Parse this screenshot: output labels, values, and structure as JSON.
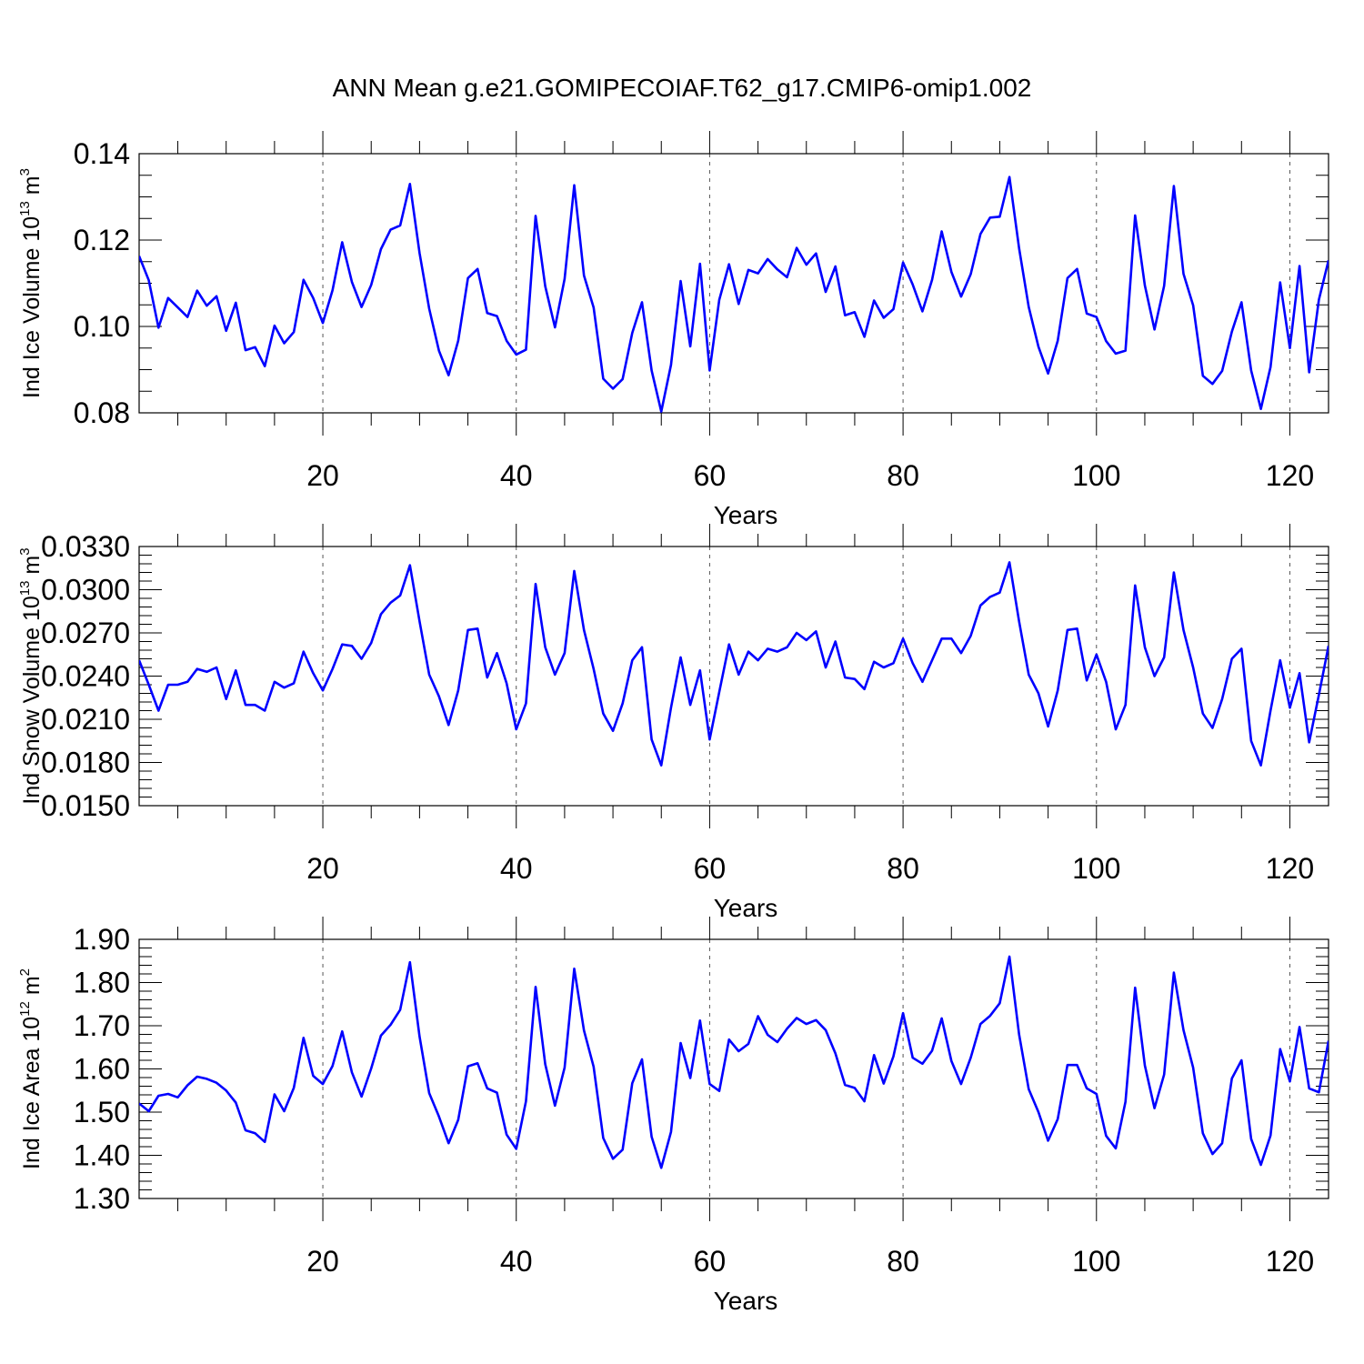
{
  "figure": {
    "title": "ANN Mean g.e21.GOMIPECOIAF.T62_g17.CMIP6-omip1.002"
  },
  "colors": {
    "line": "#0000ff",
    "axes": "#000000",
    "grid": "#555555",
    "background": "#ffffff"
  },
  "chart_data": [
    {
      "type": "line",
      "title": "ANN Mean g.e21.GOMIPECOIAF.T62_g17.CMIP6-omip1.002",
      "xlabel": "Years",
      "ylabel": "Ind Ice Volume 10",
      "ylabel_exponent": "13",
      "ylabel_unit": " m",
      "ylabel_unit_exponent": "3",
      "xlim": [
        1,
        124
      ],
      "ylim": [
        0.08,
        0.14
      ],
      "xticks": [
        20,
        40,
        60,
        80,
        100,
        120
      ],
      "xtick_labels": [
        "20",
        "40",
        "60",
        "80",
        "100",
        "120"
      ],
      "yticks": [
        0.08,
        0.1,
        0.12,
        0.14
      ],
      "ytick_labels": [
        "0.08",
        "0.10",
        "0.12",
        "0.14"
      ],
      "ytick_step_minor": 0.005,
      "grid": "vertical dashed at major x ticks",
      "series": [
        {
          "name": "Ind Ice Volume",
          "x_start": 1,
          "values": [
            0.1163,
            0.1107,
            0.0997,
            0.1066,
            0.1044,
            0.1022,
            0.1083,
            0.1048,
            0.107,
            0.099,
            0.1055,
            0.0945,
            0.0952,
            0.0908,
            0.1002,
            0.0961,
            0.0987,
            0.1108,
            0.1066,
            0.1008,
            0.1084,
            0.1195,
            0.1103,
            0.1045,
            0.1096,
            0.1179,
            0.1224,
            0.1234,
            0.133,
            0.117,
            0.1041,
            0.0944,
            0.0887,
            0.0967,
            0.1112,
            0.1133,
            0.1031,
            0.1024,
            0.0967,
            0.0935,
            0.0946,
            0.1256,
            0.1093,
            0.0998,
            0.111,
            0.1327,
            0.1118,
            0.1044,
            0.0879,
            0.0856,
            0.0878,
            0.0985,
            0.1056,
            0.0898,
            0.0803,
            0.0911,
            0.1105,
            0.0954,
            0.1145,
            0.0898,
            0.1062,
            0.1144,
            0.1052,
            0.1131,
            0.1123,
            0.1156,
            0.1132,
            0.1114,
            0.1182,
            0.1143,
            0.1169,
            0.108,
            0.1139,
            0.1026,
            0.1033,
            0.0976,
            0.106,
            0.102,
            0.104,
            0.1148,
            0.1097,
            0.1035,
            0.1108,
            0.122,
            0.1126,
            0.1069,
            0.1121,
            0.1214,
            0.1252,
            0.1254,
            0.1346,
            0.1181,
            0.1045,
            0.0953,
            0.0891,
            0.0967,
            0.1112,
            0.1133,
            0.103,
            0.1022,
            0.0966,
            0.0937,
            0.0944,
            0.1257,
            0.1095,
            0.0993,
            0.1094,
            0.1325,
            0.1122,
            0.1049,
            0.0886,
            0.0867,
            0.0897,
            0.0988,
            0.1056,
            0.0898,
            0.0809,
            0.0906,
            0.1102,
            0.095,
            0.114,
            0.0894,
            0.1062,
            0.1153
          ]
        }
      ]
    },
    {
      "type": "line",
      "xlabel": "Years",
      "ylabel": "Ind Snow Volume 10",
      "ylabel_exponent": "13",
      "ylabel_unit": " m",
      "ylabel_unit_exponent": "3",
      "xlim": [
        1,
        124
      ],
      "ylim": [
        0.015,
        0.033
      ],
      "xticks": [
        20,
        40,
        60,
        80,
        100,
        120
      ],
      "xtick_labels": [
        "20",
        "40",
        "60",
        "80",
        "100",
        "120"
      ],
      "yticks": [
        0.015,
        0.018,
        0.021,
        0.024,
        0.027,
        0.03,
        0.033
      ],
      "ytick_labels": [
        "0.0150",
        "0.0180",
        "0.0210",
        "0.0240",
        "0.0270",
        "0.0300",
        "0.0330"
      ],
      "ytick_step_minor": 0.0006,
      "grid": "vertical dashed at major x ticks",
      "series": [
        {
          "name": "Ind Snow Volume",
          "x_start": 1,
          "values": [
            0.0251,
            0.0234,
            0.0216,
            0.0234,
            0.0234,
            0.0236,
            0.0245,
            0.0243,
            0.0246,
            0.0224,
            0.0244,
            0.022,
            0.022,
            0.0216,
            0.0236,
            0.0232,
            0.0235,
            0.0257,
            0.0242,
            0.023,
            0.0245,
            0.0262,
            0.0261,
            0.0252,
            0.0263,
            0.0283,
            0.0291,
            0.0296,
            0.0317,
            0.0278,
            0.0241,
            0.0226,
            0.0206,
            0.023,
            0.0272,
            0.0273,
            0.0239,
            0.0256,
            0.0235,
            0.0203,
            0.0221,
            0.0304,
            0.026,
            0.0241,
            0.0256,
            0.0313,
            0.0272,
            0.0245,
            0.0214,
            0.0202,
            0.0221,
            0.0251,
            0.026,
            0.0196,
            0.0178,
            0.0218,
            0.0253,
            0.022,
            0.0244,
            0.0196,
            0.0229,
            0.0262,
            0.0241,
            0.0257,
            0.0251,
            0.0259,
            0.0257,
            0.026,
            0.027,
            0.0265,
            0.0271,
            0.0246,
            0.0264,
            0.0239,
            0.0238,
            0.0231,
            0.025,
            0.0246,
            0.0249,
            0.0266,
            0.0249,
            0.0236,
            0.0251,
            0.0266,
            0.0266,
            0.0256,
            0.0268,
            0.0289,
            0.0295,
            0.0298,
            0.0319,
            0.0278,
            0.0241,
            0.0228,
            0.0205,
            0.023,
            0.0272,
            0.0273,
            0.0237,
            0.0255,
            0.0236,
            0.0203,
            0.022,
            0.0303,
            0.026,
            0.024,
            0.0253,
            0.0312,
            0.0272,
            0.0246,
            0.0214,
            0.0204,
            0.0224,
            0.0252,
            0.0259,
            0.0195,
            0.0178,
            0.0216,
            0.0251,
            0.0218,
            0.0242,
            0.0194,
            0.0227,
            0.0261
          ]
        }
      ]
    },
    {
      "type": "line",
      "xlabel": "Years",
      "ylabel": "Ind Ice Area 10",
      "ylabel_exponent": "12",
      "ylabel_unit": " m",
      "ylabel_unit_exponent": "2",
      "xlim": [
        1,
        124
      ],
      "ylim": [
        1.3,
        1.9
      ],
      "xticks": [
        20,
        40,
        60,
        80,
        100,
        120
      ],
      "xtick_labels": [
        "20",
        "40",
        "60",
        "80",
        "100",
        "120"
      ],
      "yticks": [
        1.3,
        1.4,
        1.5,
        1.6,
        1.7,
        1.8,
        1.9
      ],
      "ytick_labels": [
        "1.30",
        "1.40",
        "1.50",
        "1.60",
        "1.70",
        "1.80",
        "1.90"
      ],
      "ytick_step_minor": 0.02,
      "grid": "vertical dashed at major x ticks",
      "series": [
        {
          "name": "Ind Ice Area",
          "x_start": 1,
          "values": [
            1.52,
            1.502,
            1.538,
            1.542,
            1.534,
            1.562,
            1.582,
            1.577,
            1.568,
            1.55,
            1.522,
            1.458,
            1.451,
            1.431,
            1.541,
            1.502,
            1.556,
            1.672,
            1.584,
            1.565,
            1.607,
            1.687,
            1.592,
            1.536,
            1.601,
            1.677,
            1.702,
            1.737,
            1.847,
            1.675,
            1.544,
            1.49,
            1.428,
            1.482,
            1.606,
            1.613,
            1.555,
            1.545,
            1.448,
            1.415,
            1.525,
            1.79,
            1.611,
            1.515,
            1.603,
            1.832,
            1.689,
            1.605,
            1.44,
            1.392,
            1.413,
            1.567,
            1.622,
            1.443,
            1.371,
            1.454,
            1.66,
            1.579,
            1.712,
            1.565,
            1.549,
            1.668,
            1.641,
            1.658,
            1.722,
            1.679,
            1.662,
            1.693,
            1.718,
            1.704,
            1.713,
            1.69,
            1.636,
            1.563,
            1.556,
            1.525,
            1.632,
            1.566,
            1.629,
            1.729,
            1.626,
            1.612,
            1.642,
            1.717,
            1.618,
            1.565,
            1.626,
            1.704,
            1.723,
            1.752,
            1.86,
            1.68,
            1.553,
            1.5,
            1.434,
            1.484,
            1.609,
            1.609,
            1.555,
            1.542,
            1.445,
            1.416,
            1.524,
            1.788,
            1.608,
            1.509,
            1.587,
            1.823,
            1.69,
            1.603,
            1.451,
            1.403,
            1.428,
            1.578,
            1.62,
            1.438,
            1.378,
            1.446,
            1.646,
            1.571,
            1.697,
            1.555,
            1.546,
            1.665
          ]
        }
      ]
    }
  ]
}
